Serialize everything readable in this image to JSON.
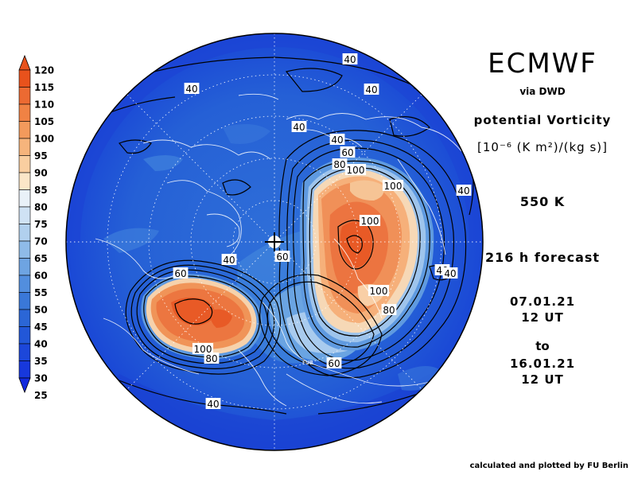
{
  "titles": {
    "model": "ECMWF",
    "via": "via DWD",
    "variable": "potential Vorticity",
    "unit": "[10⁻⁶ (K m²)/(kg s)]",
    "level": "550 K",
    "forecast": "216 h forecast",
    "start_date": "07.01.21",
    "start_time": "12 UT",
    "to": "to",
    "end_date": "16.01.21",
    "end_time": "12 UT",
    "credit": "calculated and plotted by FU Berlin"
  },
  "colorbar": {
    "levels": [
      120,
      115,
      110,
      105,
      100,
      95,
      90,
      85,
      80,
      75,
      70,
      65,
      60,
      55,
      50,
      45,
      40,
      35,
      30,
      25
    ],
    "colors": [
      "#e8521c",
      "#ec6a32",
      "#f08244",
      "#f39a5c",
      "#f6b47c",
      "#f9cea0",
      "#fbe6c8",
      "#e9f1f8",
      "#cfe2f4",
      "#b1d0ee",
      "#8fbbe8",
      "#6ea4e2",
      "#528ede",
      "#3a78d8",
      "#2b66d6",
      "#2257d8",
      "#1c47da",
      "#1738dc",
      "#122ade"
    ]
  },
  "contour_labels": [
    {
      "text": "40",
      "kind": "max-east-outer"
    },
    {
      "text": "40",
      "kind": "north-1"
    },
    {
      "text": "40",
      "kind": "north-2"
    },
    {
      "text": "40",
      "kind": "north-3"
    },
    {
      "text": "40",
      "kind": "northeast"
    },
    {
      "text": "40",
      "kind": "east"
    },
    {
      "text": "40",
      "kind": "east-2"
    },
    {
      "text": "40",
      "kind": "east-3"
    },
    {
      "text": "40",
      "kind": "center"
    },
    {
      "text": "40",
      "kind": "south"
    },
    {
      "text": "60",
      "kind": "east-max-1"
    },
    {
      "text": "80",
      "kind": "east-max-2"
    },
    {
      "text": "100",
      "kind": "east-max-3"
    },
    {
      "text": "100",
      "kind": "east-max-4"
    },
    {
      "text": "100",
      "kind": "east-max-5"
    },
    {
      "text": "100",
      "kind": "east-max-6"
    },
    {
      "text": "80",
      "kind": "east-max-7"
    },
    {
      "text": "60",
      "kind": "pole"
    },
    {
      "text": "60",
      "kind": "south-1"
    },
    {
      "text": "60",
      "kind": "west-max-1"
    },
    {
      "text": "100",
      "kind": "west-max-2"
    },
    {
      "text": "80",
      "kind": "west-max-3"
    }
  ],
  "map_annotation": "FUB"
}
